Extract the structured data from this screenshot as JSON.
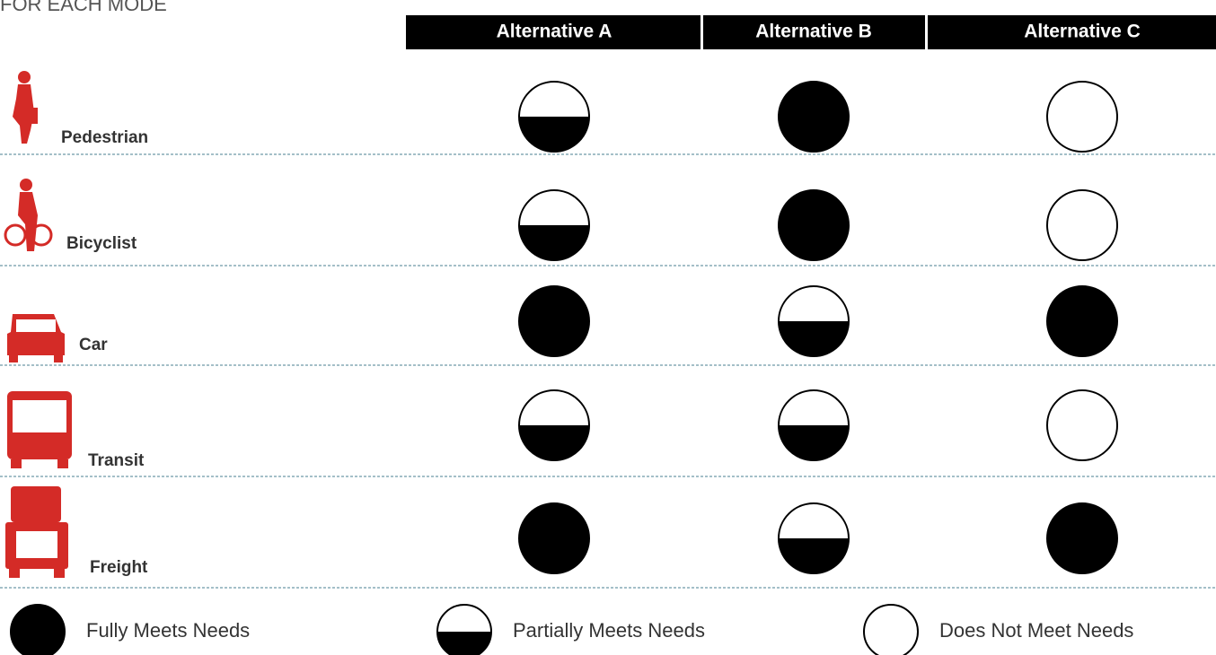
{
  "header": {
    "title": "FOR EACH MODE"
  },
  "columns": [
    "Alternative A",
    "Alternative B",
    "Alternative C"
  ],
  "rows": [
    {
      "mode": "Pedestrian",
      "levels": [
        0.5,
        1,
        0
      ]
    },
    {
      "mode": "Bicyclist",
      "levels": [
        0.5,
        1,
        0
      ]
    },
    {
      "mode": "Car",
      "levels": [
        1,
        0.5,
        1
      ]
    },
    {
      "mode": "Transit",
      "levels": [
        0.5,
        0.5,
        0
      ]
    },
    {
      "mode": "Freight",
      "levels": [
        1,
        0.5,
        1
      ]
    }
  ],
  "legend": [
    {
      "label": "Fully Meets Needs",
      "level": 1
    },
    {
      "label": "Partially Meets Needs",
      "level": 0.5
    },
    {
      "label": "Does Not Meet Needs",
      "level": 0
    }
  ]
}
